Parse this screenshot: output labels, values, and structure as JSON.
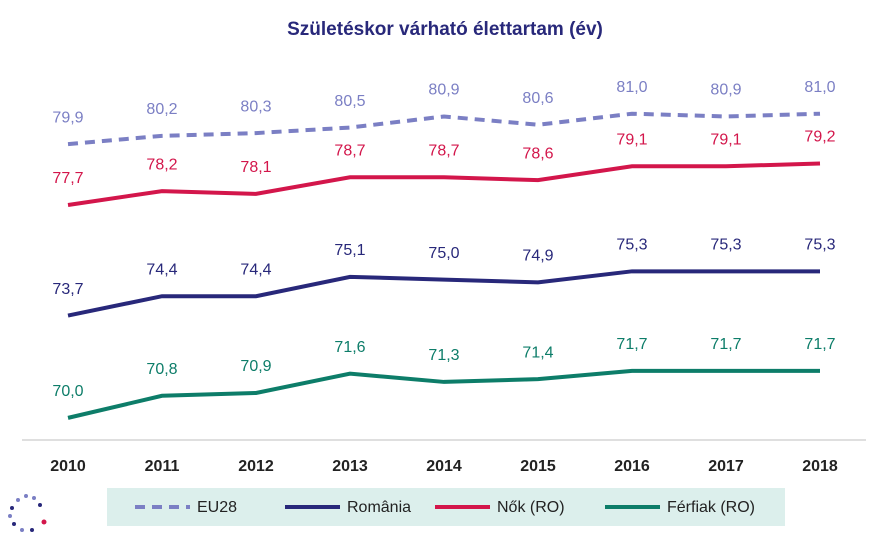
{
  "chart_data": {
    "type": "line",
    "title": "Születéskor várható élettartam (év)",
    "categories": [
      "2010",
      "2011",
      "2012",
      "2013",
      "2014",
      "2015",
      "2016",
      "2017",
      "2018"
    ],
    "ylim": [
      69.2,
      82.4
    ],
    "series": [
      {
        "name": "EU28",
        "color": "#7b7fc4",
        "dashed": true,
        "values": [
          79.9,
          80.2,
          80.3,
          80.5,
          80.9,
          80.6,
          81.0,
          80.9,
          81.0
        ],
        "value_labels": [
          "79,9",
          "80,2",
          "80,3",
          "80,5",
          "80,9",
          "80,6",
          "81,0",
          "80,9",
          "81,0"
        ]
      },
      {
        "name": "România",
        "color": "#28287a",
        "dashed": false,
        "values": [
          73.7,
          74.4,
          74.4,
          75.1,
          75.0,
          74.9,
          75.3,
          75.3,
          75.3
        ],
        "value_labels": [
          "73,7",
          "74,4",
          "74,4",
          "75,1",
          "75,0",
          "74,9",
          "75,3",
          "75,3",
          "75,3"
        ]
      },
      {
        "name": "Nők (RO)",
        "color": "#d3164b",
        "dashed": false,
        "values": [
          77.7,
          78.2,
          78.1,
          78.7,
          78.7,
          78.6,
          79.1,
          79.1,
          79.2
        ],
        "value_labels": [
          "77,7",
          "78,2",
          "78,1",
          "78,7",
          "78,7",
          "78,6",
          "79,1",
          "79,1",
          "79,2"
        ]
      },
      {
        "name": "Férfiak (RO)",
        "color": "#0d7d69",
        "dashed": false,
        "values": [
          70.0,
          70.8,
          70.9,
          71.6,
          71.3,
          71.4,
          71.7,
          71.7,
          71.7
        ],
        "value_labels": [
          "70,0",
          "70,8",
          "70,9",
          "71,6",
          "71,3",
          "71,4",
          "71,7",
          "71,7",
          "71,7"
        ]
      }
    ]
  }
}
